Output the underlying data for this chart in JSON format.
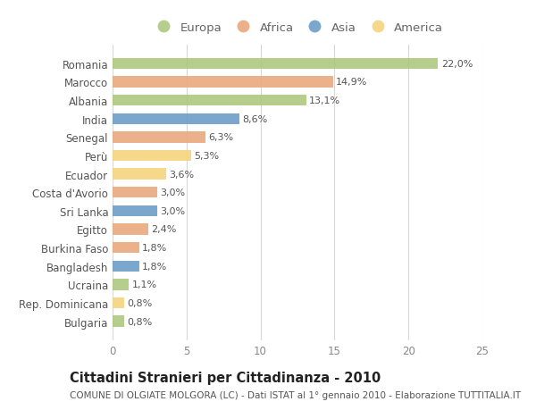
{
  "countries": [
    "Romania",
    "Marocco",
    "Albania",
    "India",
    "Senegal",
    "Perù",
    "Ecuador",
    "Costa d'Avorio",
    "Sri Lanka",
    "Egitto",
    "Burkina Faso",
    "Bangladesh",
    "Ucraina",
    "Rep. Dominicana",
    "Bulgaria"
  ],
  "values": [
    22.0,
    14.9,
    13.1,
    8.6,
    6.3,
    5.3,
    3.6,
    3.0,
    3.0,
    2.4,
    1.8,
    1.8,
    1.1,
    0.8,
    0.8
  ],
  "labels": [
    "22,0%",
    "14,9%",
    "13,1%",
    "8,6%",
    "6,3%",
    "5,3%",
    "3,6%",
    "3,0%",
    "3,0%",
    "2,4%",
    "1,8%",
    "1,8%",
    "1,1%",
    "0,8%",
    "0,8%"
  ],
  "categories": [
    "Europa",
    "Africa",
    "Europa",
    "Asia",
    "Africa",
    "America",
    "America",
    "Africa",
    "Asia",
    "Africa",
    "Africa",
    "Asia",
    "Europa",
    "America",
    "Europa"
  ],
  "colors": {
    "Europa": "#adc97e",
    "Africa": "#e8a97e",
    "Asia": "#6e9ec8",
    "America": "#f5d47e"
  },
  "legend_order": [
    "Europa",
    "Africa",
    "Asia",
    "America"
  ],
  "title": "Cittadini Stranieri per Cittadinanza - 2010",
  "subtitle": "COMUNE DI OLGIATE MOLGORA (LC) - Dati ISTAT al 1° gennaio 2010 - Elaborazione TUTTITALIA.IT",
  "xlim": [
    0,
    25
  ],
  "xticks": [
    0,
    5,
    10,
    15,
    20,
    25
  ],
  "background_color": "#ffffff",
  "grid_color": "#d8d8d8",
  "bar_height": 0.6,
  "title_fontsize": 10.5,
  "subtitle_fontsize": 7.5,
  "label_fontsize": 8,
  "tick_fontsize": 8.5,
  "legend_fontsize": 9.5
}
